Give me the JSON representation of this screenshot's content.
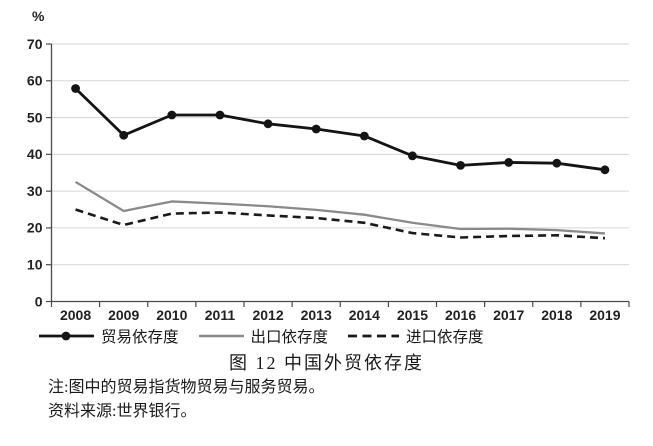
{
  "chart_data": {
    "type": "line",
    "title": "图 12  中国外贸依存度",
    "ylabel": "%",
    "xlabel": "",
    "ylim": [
      0,
      70
    ],
    "yticks": [
      0,
      10,
      20,
      30,
      40,
      50,
      60,
      70
    ],
    "grid": "horizontal",
    "legend_position": "bottom",
    "x": [
      "2008",
      "2009",
      "2010",
      "2011",
      "2012",
      "2013",
      "2014",
      "2015",
      "2016",
      "2017",
      "2018",
      "2019"
    ],
    "series": [
      {
        "name": "贸易依存度",
        "style": "solid-marker",
        "color": "#141414",
        "values": [
          57.9,
          45.2,
          50.7,
          50.7,
          48.3,
          46.9,
          45.0,
          39.6,
          37.0,
          37.8,
          37.6,
          35.8
        ]
      },
      {
        "name": "出口依存度",
        "style": "solid",
        "color": "#8a8a8a",
        "values": [
          32.5,
          24.6,
          27.2,
          26.6,
          25.9,
          24.9,
          23.6,
          21.4,
          19.7,
          19.8,
          19.4,
          18.5
        ]
      },
      {
        "name": "进口依存度",
        "style": "dashed",
        "color": "#1a1a1a",
        "values": [
          25.0,
          20.8,
          23.9,
          24.2,
          23.4,
          22.7,
          21.4,
          18.6,
          17.4,
          17.8,
          18.0,
          17.2
        ]
      }
    ]
  },
  "caption": "图 12  中国外贸依存度",
  "notes": [
    "注:图中的贸易指货物贸易与服务贸易。",
    "资料来源:世界银行。"
  ],
  "colors": {
    "grid": "#d6d6d6",
    "axis": "#4a4a4a",
    "tick_label": "#222222",
    "background": "#ffffff"
  }
}
